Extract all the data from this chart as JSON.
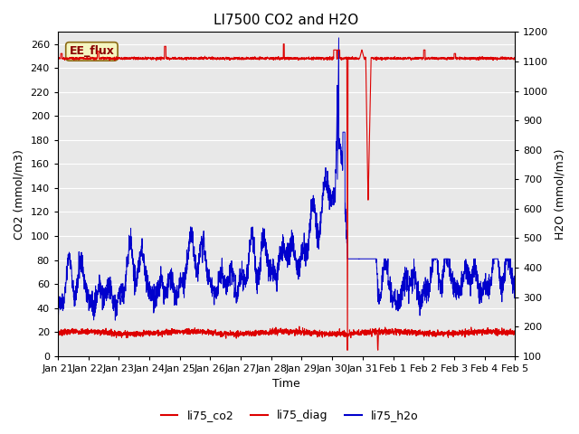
{
  "title": "LI7500 CO2 and H2O",
  "xlabel": "Time",
  "ylabel_left": "CO2 (mmol/m3)",
  "ylabel_right": "H2O (mmol/m3)",
  "ylim_left": [
    0,
    270
  ],
  "ylim_right": [
    100,
    1200
  ],
  "yticks_left": [
    0,
    20,
    40,
    60,
    80,
    100,
    120,
    140,
    160,
    180,
    200,
    220,
    240,
    260
  ],
  "yticks_right": [
    100,
    200,
    300,
    400,
    500,
    600,
    700,
    800,
    900,
    1000,
    1100,
    1200
  ],
  "xtick_labels": [
    "Jan 21",
    "Jan 22",
    "Jan 23",
    "Jan 24",
    "Jan 25",
    "Jan 26",
    "Jan 27",
    "Jan 28",
    "Jan 29",
    "Jan 30",
    "Jan 31",
    "Feb 1",
    "Feb 2",
    "Feb 3",
    "Feb 4",
    "Feb 5"
  ],
  "annotation_text": "EE_flux",
  "fig_bg_color": "#ffffff",
  "plot_bg_color": "#e8e8e8",
  "color_co2": "#dd0000",
  "color_diag": "#dd0000",
  "color_h2o": "#0000cc",
  "legend_labels": [
    "li75_co2",
    "li75_diag",
    "li75_h2o"
  ],
  "title_fontsize": 11,
  "axis_fontsize": 9,
  "tick_fontsize": 8
}
